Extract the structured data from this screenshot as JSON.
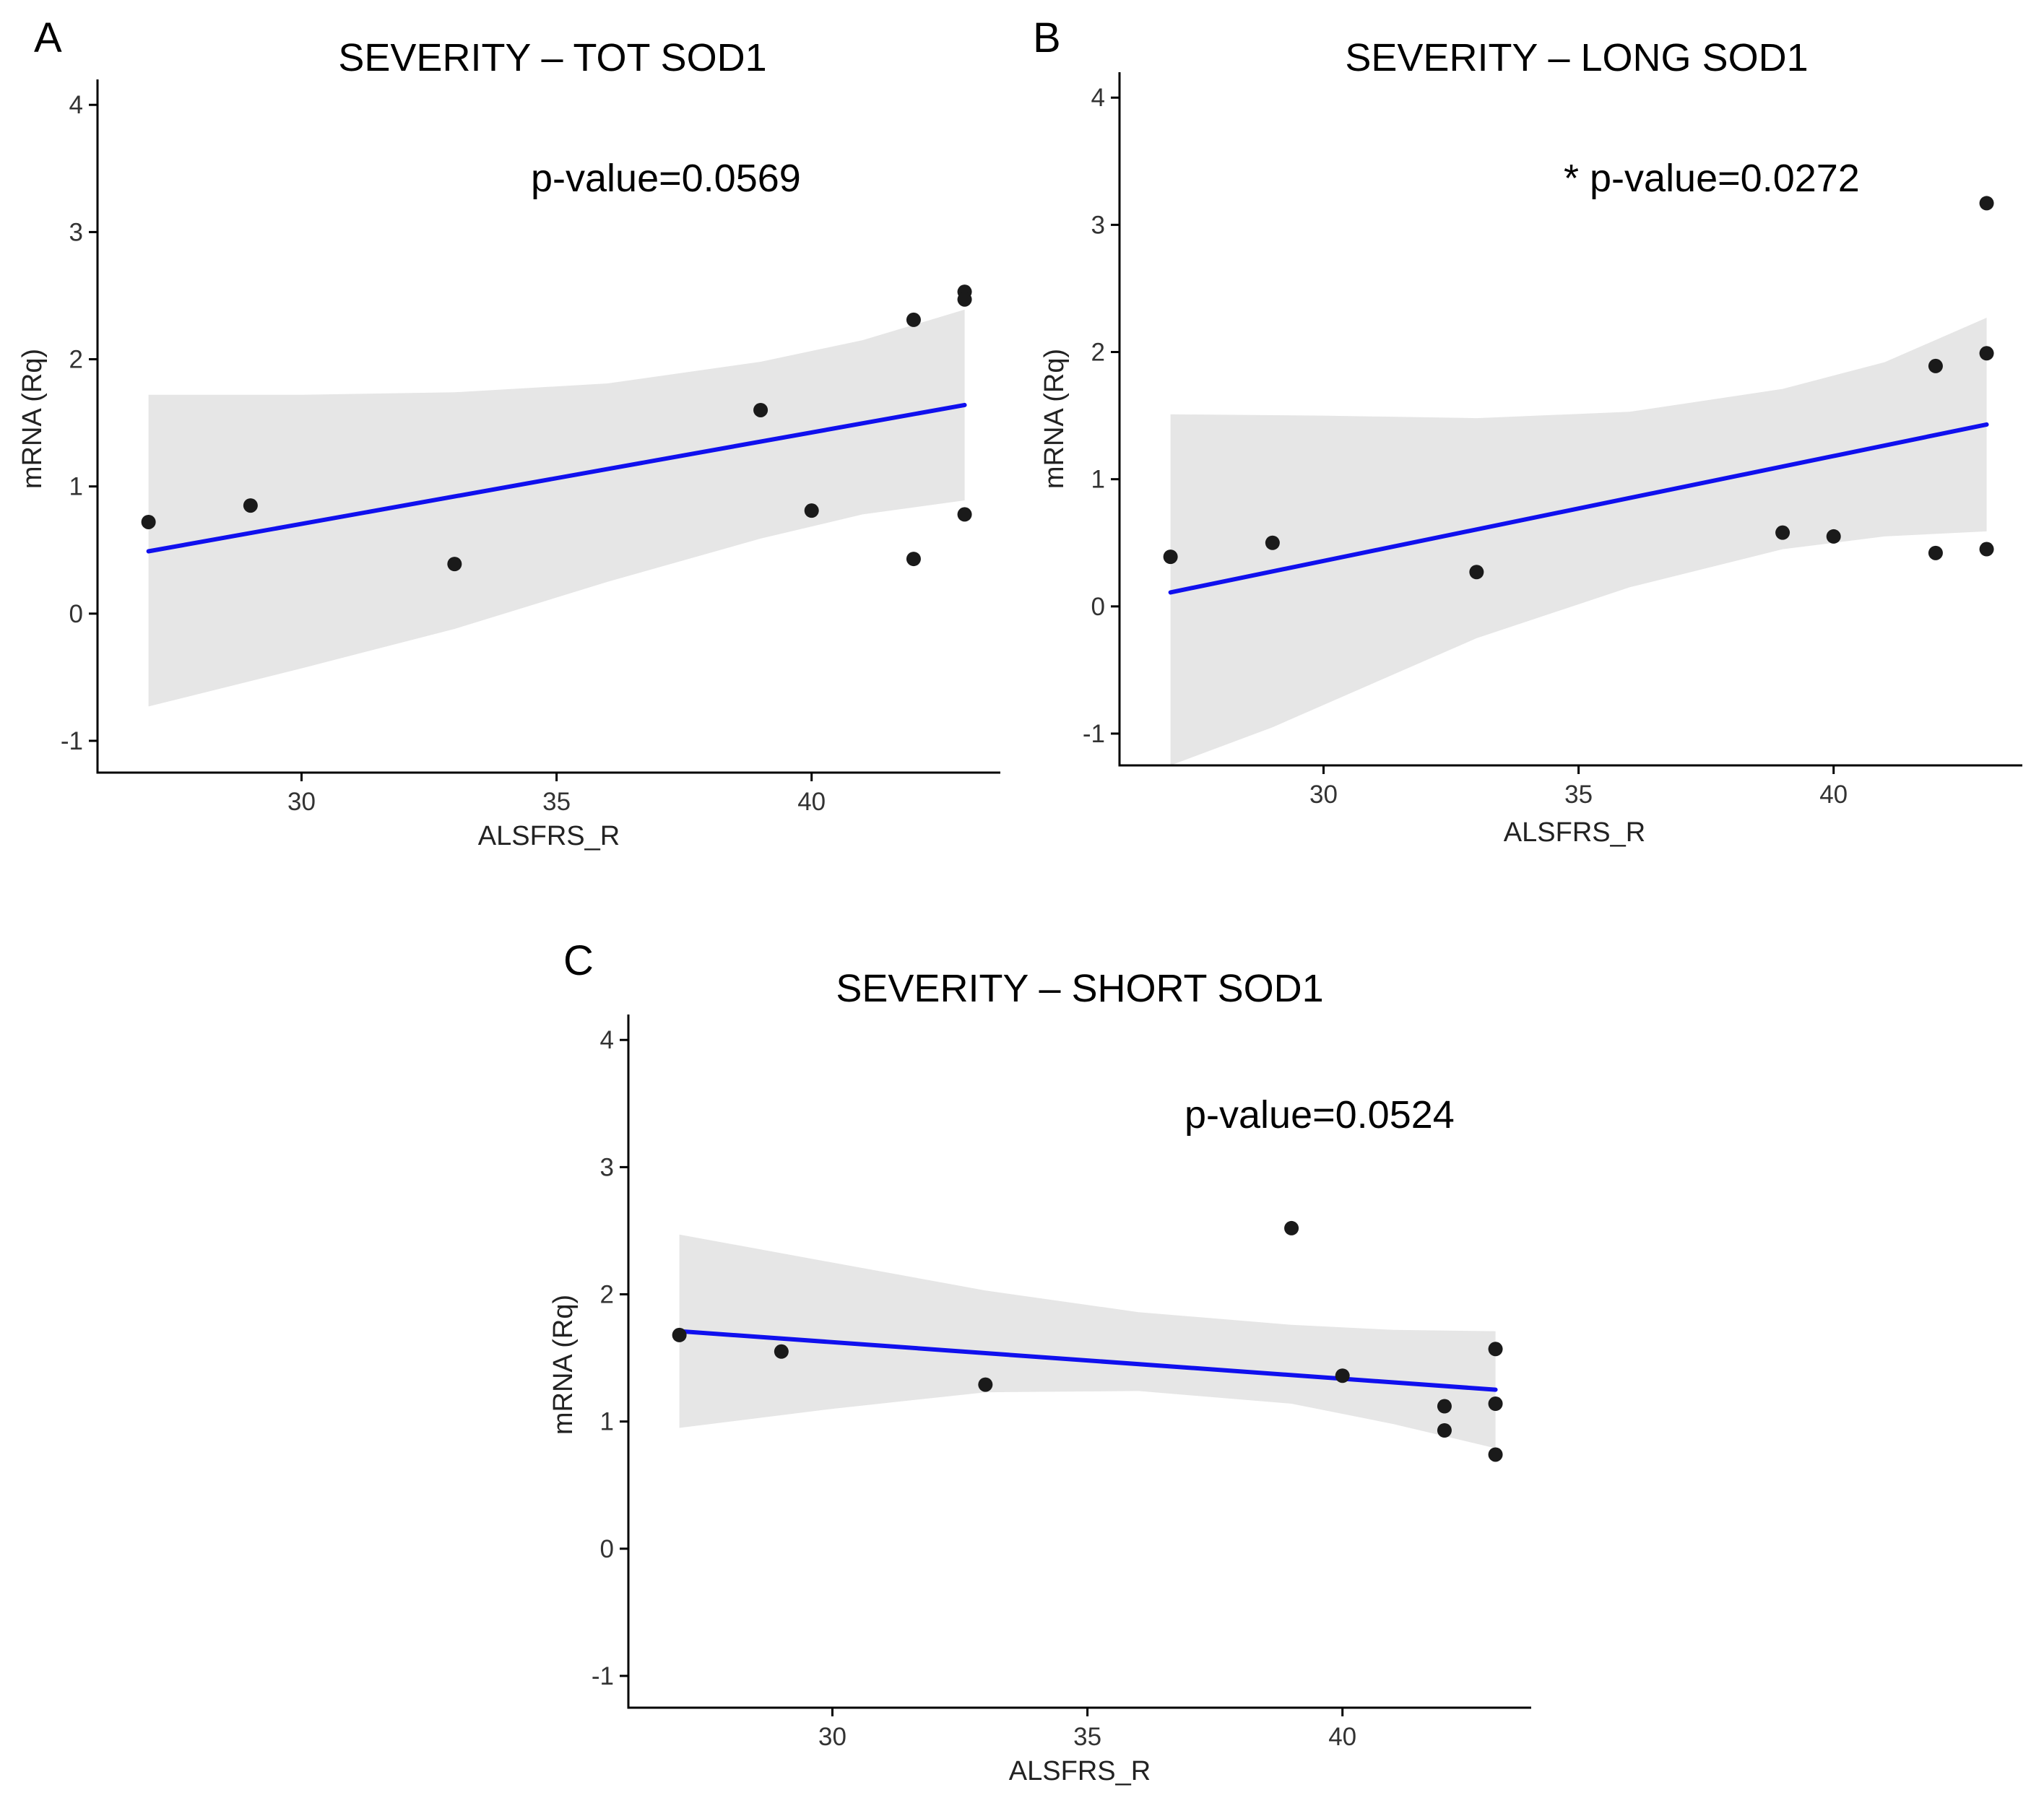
{
  "chart_data": [
    {
      "panel": "A",
      "type": "scatter",
      "title": "SEVERITY – TOT SOD1",
      "annotation": "p-value=0.0569",
      "xlabel": "ALSFRS_R",
      "ylabel": "mRNA (Rq)",
      "xlim": [
        26,
        43.7
      ],
      "ylim": [
        -1.25,
        4.2
      ],
      "xticks": [
        30,
        35,
        40
      ],
      "yticks": [
        -1,
        0,
        1,
        2,
        3,
        4
      ],
      "points": [
        {
          "x": 27,
          "y": 0.72
        },
        {
          "x": 29,
          "y": 0.85
        },
        {
          "x": 33,
          "y": 0.39
        },
        {
          "x": 39,
          "y": 1.6
        },
        {
          "x": 40,
          "y": 0.81
        },
        {
          "x": 42,
          "y": 2.31
        },
        {
          "x": 42,
          "y": 0.43
        },
        {
          "x": 43,
          "y": 2.53
        },
        {
          "x": 43,
          "y": 2.47
        },
        {
          "x": 43,
          "y": 0.78
        }
      ],
      "fit": {
        "x0": 27,
        "y0": 0.49,
        "x1": 43,
        "y1": 1.64
      },
      "ci_upper": [
        [
          27,
          1.72
        ],
        [
          30,
          1.72
        ],
        [
          33,
          1.74
        ],
        [
          36,
          1.81
        ],
        [
          39,
          1.98
        ],
        [
          41,
          2.15
        ],
        [
          43,
          2.39
        ]
      ],
      "ci_lower": [
        [
          27,
          -0.73
        ],
        [
          30,
          -0.43
        ],
        [
          33,
          -0.12
        ],
        [
          36,
          0.25
        ],
        [
          39,
          0.59
        ],
        [
          41,
          0.78
        ],
        [
          43,
          0.89
        ]
      ],
      "point_color": "#1a1a1a",
      "line_color": "#1010ee",
      "band_color": "#e6e6e6",
      "grid": false
    },
    {
      "panel": "B",
      "type": "scatter",
      "title": "SEVERITY – LONG SOD1",
      "annotation": "* p-value=0.0272",
      "xlabel": "ALSFRS_R",
      "ylabel": "mRNA (Rq)",
      "xlim": [
        26,
        43.7
      ],
      "ylim": [
        -1.25,
        4.2
      ],
      "xticks": [
        30,
        35,
        40
      ],
      "yticks": [
        -1,
        0,
        1,
        2,
        3,
        4
      ],
      "points": [
        {
          "x": 27,
          "y": 0.39
        },
        {
          "x": 29,
          "y": 0.5
        },
        {
          "x": 33,
          "y": 0.27
        },
        {
          "x": 39,
          "y": 0.58
        },
        {
          "x": 40,
          "y": 0.55
        },
        {
          "x": 42,
          "y": 1.89
        },
        {
          "x": 42,
          "y": 0.42
        },
        {
          "x": 43,
          "y": 3.17
        },
        {
          "x": 43,
          "y": 1.99
        },
        {
          "x": 43,
          "y": 0.45
        }
      ],
      "fit": {
        "x0": 27,
        "y0": 0.11,
        "x1": 43,
        "y1": 1.43
      },
      "ci_upper": [
        [
          27,
          1.51
        ],
        [
          30,
          1.5
        ],
        [
          33,
          1.48
        ],
        [
          36,
          1.53
        ],
        [
          39,
          1.71
        ],
        [
          41,
          1.92
        ],
        [
          43,
          2.27
        ]
      ],
      "ci_lower": [
        [
          27,
          -1.25
        ],
        [
          29,
          -0.95
        ],
        [
          31,
          -0.6
        ],
        [
          33,
          -0.25
        ],
        [
          36,
          0.15
        ],
        [
          39,
          0.45
        ],
        [
          41,
          0.55
        ],
        [
          43,
          0.59
        ]
      ],
      "point_color": "#1a1a1a",
      "line_color": "#1010ee",
      "band_color": "#e6e6e6",
      "grid": false
    },
    {
      "panel": "C",
      "type": "scatter",
      "title": "SEVERITY – SHORT SOD1",
      "annotation": "p-value=0.0524",
      "xlabel": "ALSFRS_R",
      "ylabel": "mRNA (Rq)",
      "xlim": [
        26,
        43.7
      ],
      "ylim": [
        -1.25,
        4.2
      ],
      "xticks": [
        30,
        35,
        40
      ],
      "yticks": [
        -1,
        0,
        1,
        2,
        3,
        4
      ],
      "points": [
        {
          "x": 27,
          "y": 1.68
        },
        {
          "x": 29,
          "y": 1.55
        },
        {
          "x": 33,
          "y": 1.29
        },
        {
          "x": 39,
          "y": 2.52
        },
        {
          "x": 40,
          "y": 1.36
        },
        {
          "x": 42,
          "y": 1.12
        },
        {
          "x": 42,
          "y": 0.93
        },
        {
          "x": 43,
          "y": 1.57
        },
        {
          "x": 43,
          "y": 1.14
        },
        {
          "x": 43,
          "y": 0.74
        }
      ],
      "fit": {
        "x0": 27,
        "y0": 1.71,
        "x1": 43,
        "y1": 1.25
      },
      "ci_upper": [
        [
          27,
          2.47
        ],
        [
          30,
          2.25
        ],
        [
          33,
          2.03
        ],
        [
          36,
          1.86
        ],
        [
          39,
          1.76
        ],
        [
          41,
          1.72
        ],
        [
          43,
          1.71
        ]
      ],
      "ci_lower": [
        [
          27,
          0.95
        ],
        [
          30,
          1.1
        ],
        [
          33,
          1.23
        ],
        [
          36,
          1.24
        ],
        [
          39,
          1.14
        ],
        [
          41,
          0.98
        ],
        [
          43,
          0.79
        ]
      ],
      "point_color": "#1a1a1a",
      "line_color": "#1010ee",
      "band_color": "#e6e6e6",
      "grid": false
    }
  ]
}
